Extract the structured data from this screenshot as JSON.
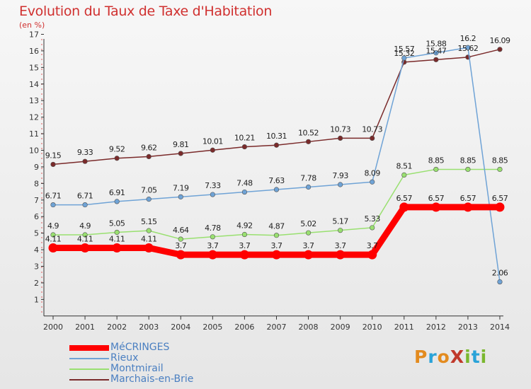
{
  "header": {
    "title": "Evolution du Taux de Taxe d'Habitation",
    "subtitle": "(en %)"
  },
  "logo": {
    "text": "ProXiti",
    "colors": [
      "#e38b1f",
      "#2aa3d8",
      "#e38b1f",
      "#c0392b",
      "#7ab72e",
      "#2aa3d8",
      "#7ab72e"
    ]
  },
  "chart_data": {
    "type": "line",
    "title": "Evolution du Taux de Taxe d'Habitation",
    "ylabel": "(en %)",
    "xlabel": "",
    "x": [
      "2000",
      "2001",
      "2002",
      "2003",
      "2004",
      "2005",
      "2006",
      "2007",
      "2008",
      "2009",
      "2010",
      "2011",
      "2012",
      "2013",
      "2014"
    ],
    "ylim": [
      0,
      17
    ],
    "yticks": [
      1,
      2,
      3,
      4,
      5,
      6,
      7,
      8,
      9,
      10,
      11,
      12,
      13,
      14,
      15,
      16,
      17
    ],
    "grid": false,
    "legend_position": "bottom-left",
    "series": [
      {
        "name": "MéCRINGES",
        "color": "#ff0000",
        "values": [
          4.11,
          4.11,
          4.11,
          4.11,
          3.7,
          3.7,
          3.7,
          3.7,
          3.7,
          3.7,
          3.7,
          6.57,
          6.57,
          6.57,
          6.57
        ],
        "labels": [
          "4.11",
          "4.11",
          "4.11",
          "4.11",
          "3.7",
          "3.7",
          "3.7",
          "3.7",
          "3.7",
          "3.7",
          "3.7",
          "6.57",
          "6.57",
          "6.57",
          "6.57"
        ]
      },
      {
        "name": "Rieux",
        "color": "#6fa3d6",
        "values": [
          6.71,
          6.71,
          6.91,
          7.05,
          7.19,
          7.33,
          7.48,
          7.63,
          7.78,
          7.93,
          8.09,
          15.57,
          15.88,
          16.2,
          2.06
        ],
        "labels": [
          "6.71",
          "6.71",
          "6.91",
          "7.05",
          "7.19",
          "7.33",
          "7.48",
          "7.63",
          "7.78",
          "7.93",
          "8.09",
          "15.57",
          "15.88",
          "16.2",
          "2.06"
        ]
      },
      {
        "name": "Montmirail",
        "color": "#99e070",
        "values": [
          4.9,
          4.9,
          5.05,
          5.15,
          4.64,
          4.78,
          4.92,
          4.87,
          5.02,
          5.17,
          5.33,
          8.51,
          8.85,
          8.85,
          8.85
        ],
        "labels": [
          "4.9",
          "4.9",
          "5.05",
          "5.15",
          "4.64",
          "4.78",
          "4.92",
          "4.87",
          "5.02",
          "5.17",
          "5.33",
          "8.51",
          "8.85",
          "8.85",
          "8.85"
        ]
      },
      {
        "name": "Marchais-en-Brie",
        "color": "#7a2a2a",
        "values": [
          9.15,
          9.33,
          9.52,
          9.62,
          9.81,
          10.01,
          10.21,
          10.31,
          10.52,
          10.73,
          10.73,
          15.32,
          15.47,
          15.62,
          16.09
        ],
        "labels": [
          "9.15",
          "9.33",
          "9.52",
          "9.62",
          "9.81",
          "10.01",
          "10.21",
          "10.31",
          "10.52",
          "10.73",
          "10.73",
          "15.32",
          "15.47",
          "15.62",
          "16.09"
        ]
      }
    ]
  }
}
